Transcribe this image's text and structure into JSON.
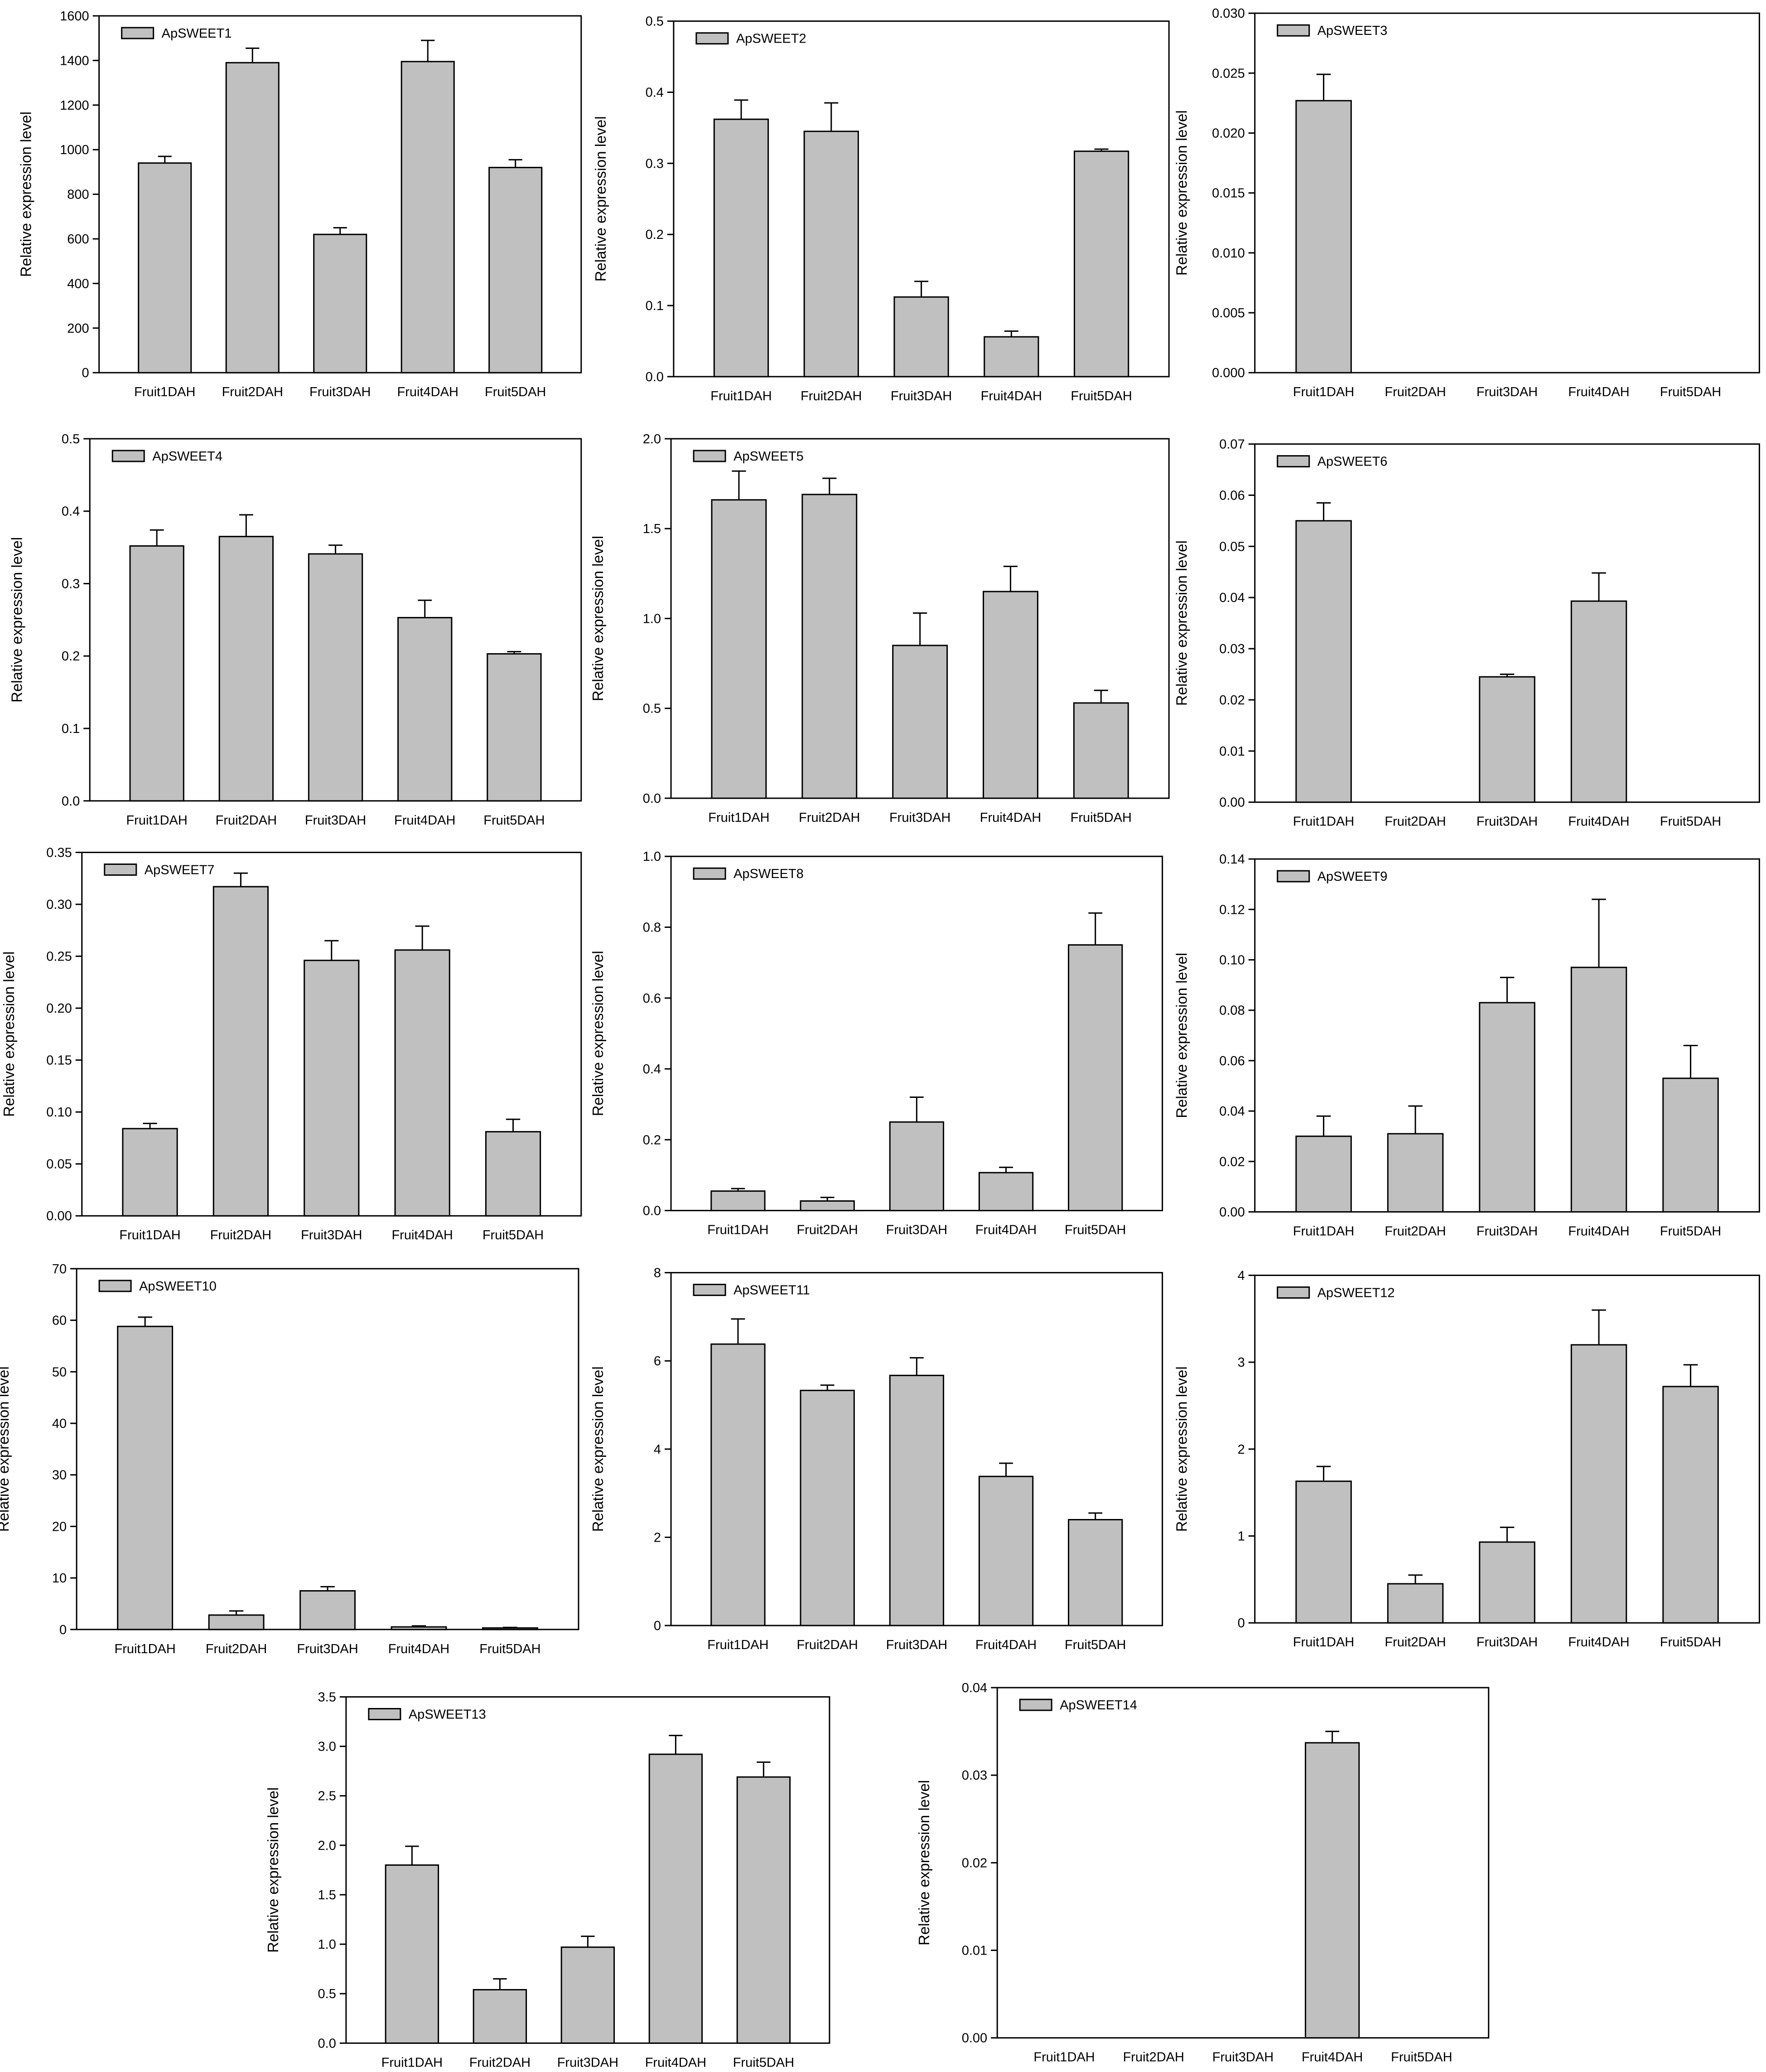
{
  "chart_data": [
    {
      "type": "bar",
      "legend": "ApSWEET1",
      "ylabel": "Relative expression level",
      "categories": [
        "Fruit1DAH",
        "Fruit2DAH",
        "Fruit3DAH",
        "Fruit4DAH",
        "Fruit5DAH"
      ],
      "values": [
        940,
        1390,
        620,
        1395,
        920
      ],
      "errors": [
        30,
        65,
        30,
        95,
        35
      ],
      "ylim": [
        0,
        1600
      ],
      "yticks": [
        "0",
        "200",
        "400",
        "600",
        "800",
        "1000",
        "1200",
        "1400",
        "1600"
      ],
      "legend_position": "top-left"
    },
    {
      "type": "bar",
      "legend": "ApSWEET2",
      "ylabel": "Relative expression level",
      "categories": [
        "Fruit1DAH",
        "Fruit2DAH",
        "Fruit3DAH",
        "Fruit4DAH",
        "Fruit5DAH"
      ],
      "values": [
        0.362,
        0.345,
        0.112,
        0.056,
        0.317
      ],
      "errors": [
        0.027,
        0.04,
        0.022,
        0.008,
        0.003
      ],
      "ylim": [
        0,
        0.5
      ],
      "yticks": [
        "0.0",
        "0.1",
        "0.2",
        "0.3",
        "0.4",
        "0.5"
      ],
      "legend_position": "top-left"
    },
    {
      "type": "bar",
      "legend": "ApSWEET3",
      "ylabel": "Relative expression level",
      "categories": [
        "Fruit1DAH",
        "Fruit2DAH",
        "Fruit3DAH",
        "Fruit4DAH",
        "Fruit5DAH"
      ],
      "values": [
        0.0227,
        0,
        0,
        0,
        0
      ],
      "errors": [
        0.0022,
        0,
        0,
        0,
        0
      ],
      "ylim": [
        0,
        0.03
      ],
      "yticks": [
        "0.000",
        "0.005",
        "0.010",
        "0.015",
        "0.020",
        "0.025",
        "0.030"
      ],
      "legend_position": "top-left"
    },
    {
      "type": "bar",
      "legend": "ApSWEET4",
      "ylabel": "Relative expression level",
      "categories": [
        "Fruit1DAH",
        "Fruit2DAH",
        "Fruit3DAH",
        "Fruit4DAH",
        "Fruit5DAH"
      ],
      "values": [
        0.352,
        0.365,
        0.341,
        0.253,
        0.203
      ],
      "errors": [
        0.022,
        0.03,
        0.012,
        0.024,
        0.003
      ],
      "ylim": [
        0,
        0.5
      ],
      "yticks": [
        "0.0",
        "0.1",
        "0.2",
        "0.3",
        "0.4",
        "0.5"
      ],
      "legend_position": "top-left"
    },
    {
      "type": "bar",
      "legend": "ApSWEET5",
      "ylabel": "Relative expression level",
      "categories": [
        "Fruit1DAH",
        "Fruit2DAH",
        "Fruit3DAH",
        "Fruit4DAH",
        "Fruit5DAH"
      ],
      "values": [
        1.66,
        1.69,
        0.85,
        1.15,
        0.53
      ],
      "errors": [
        0.16,
        0.09,
        0.18,
        0.14,
        0.07
      ],
      "ylim": [
        0,
        2.0
      ],
      "yticks": [
        "0.0",
        "0.5",
        "1.0",
        "1.5",
        "2.0"
      ],
      "legend_position": "top-left"
    },
    {
      "type": "bar",
      "legend": "ApSWEET6",
      "ylabel": "Relative expression level",
      "categories": [
        "Fruit1DAH",
        "Fruit2DAH",
        "Fruit3DAH",
        "Fruit4DAH",
        "Fruit5DAH"
      ],
      "values": [
        0.055,
        0,
        0.0245,
        0.0393,
        0
      ],
      "errors": [
        0.0035,
        0,
        0.0005,
        0.0055,
        0
      ],
      "ylim": [
        0,
        0.07
      ],
      "yticks": [
        "0.00",
        "0.01",
        "0.02",
        "0.03",
        "0.04",
        "0.05",
        "0.06",
        "0.07"
      ],
      "legend_position": "top-left"
    },
    {
      "type": "bar",
      "legend": "ApSWEET7",
      "ylabel": "Relative expression level",
      "categories": [
        "Fruit1DAH",
        "Fruit2DAH",
        "Fruit3DAH",
        "Fruit4DAH",
        "Fruit5DAH"
      ],
      "values": [
        0.084,
        0.317,
        0.246,
        0.256,
        0.081
      ],
      "errors": [
        0.005,
        0.013,
        0.019,
        0.023,
        0.012
      ],
      "ylim": [
        0,
        0.35
      ],
      "yticks": [
        "0.00",
        "0.05",
        "0.10",
        "0.15",
        "0.20",
        "0.25",
        "0.30",
        "0.35"
      ],
      "legend_position": "top-left"
    },
    {
      "type": "bar",
      "legend": "ApSWEET8",
      "ylabel": "Relative expression level",
      "categories": [
        "Fruit1DAH",
        "Fruit2DAH",
        "Fruit3DAH",
        "Fruit4DAH",
        "Fruit5DAH"
      ],
      "values": [
        0.055,
        0.027,
        0.25,
        0.107,
        0.75
      ],
      "errors": [
        0.007,
        0.01,
        0.07,
        0.015,
        0.09
      ],
      "ylim": [
        0,
        1.0
      ],
      "yticks": [
        "0.0",
        "0.2",
        "0.4",
        "0.6",
        "0.8",
        "1.0"
      ],
      "legend_position": "top-left"
    },
    {
      "type": "bar",
      "legend": "ApSWEET9",
      "ylabel": "Relative expression level",
      "categories": [
        "Fruit1DAH",
        "Fruit2DAH",
        "Fruit3DAH",
        "Fruit4DAH",
        "Fruit5DAH"
      ],
      "values": [
        0.03,
        0.031,
        0.083,
        0.097,
        0.053
      ],
      "errors": [
        0.008,
        0.011,
        0.01,
        0.027,
        0.013
      ],
      "ylim": [
        0,
        0.14
      ],
      "yticks": [
        "0.00",
        "0.02",
        "0.04",
        "0.06",
        "0.08",
        "0.10",
        "0.12",
        "0.14"
      ],
      "legend_position": "top-left"
    },
    {
      "type": "bar",
      "legend": "ApSWEET10",
      "ylabel": "Relative expression level",
      "categories": [
        "Fruit1DAH",
        "Fruit2DAH",
        "Fruit3DAH",
        "Fruit4DAH",
        "Fruit5DAH"
      ],
      "values": [
        58.8,
        2.8,
        7.5,
        0.5,
        0.3
      ],
      "errors": [
        1.8,
        0.8,
        0.8,
        0.2,
        0.1
      ],
      "ylim": [
        0,
        70
      ],
      "yticks": [
        "0",
        "10",
        "20",
        "30",
        "40",
        "50",
        "60",
        "70"
      ],
      "legend_position": "top-left"
    },
    {
      "type": "bar",
      "legend": "ApSWEET11",
      "ylabel": "Relative expression level",
      "categories": [
        "Fruit1DAH",
        "Fruit2DAH",
        "Fruit3DAH",
        "Fruit4DAH",
        "Fruit5DAH"
      ],
      "values": [
        6.38,
        5.33,
        5.67,
        3.38,
        2.4
      ],
      "errors": [
        0.57,
        0.12,
        0.4,
        0.3,
        0.15
      ],
      "ylim": [
        0,
        8
      ],
      "yticks": [
        "0",
        "2",
        "4",
        "6",
        "8"
      ],
      "legend_position": "top-left"
    },
    {
      "type": "bar",
      "legend": "ApSWEET12",
      "ylabel": "Relative expression level",
      "categories": [
        "Fruit1DAH",
        "Fruit2DAH",
        "Fruit3DAH",
        "Fruit4DAH",
        "Fruit5DAH"
      ],
      "values": [
        1.63,
        0.45,
        0.93,
        3.2,
        2.72
      ],
      "errors": [
        0.17,
        0.1,
        0.17,
        0.4,
        0.25
      ],
      "ylim": [
        0,
        4
      ],
      "yticks": [
        "0",
        "1",
        "2",
        "3",
        "4"
      ],
      "legend_position": "top-left"
    },
    {
      "type": "bar",
      "legend": "ApSWEET13",
      "ylabel": "Relative expression level",
      "categories": [
        "Fruit1DAH",
        "Fruit2DAH",
        "Fruit3DAH",
        "Fruit4DAH",
        "Fruit5DAH"
      ],
      "values": [
        1.8,
        0.54,
        0.97,
        2.92,
        2.69
      ],
      "errors": [
        0.19,
        0.11,
        0.11,
        0.19,
        0.15
      ],
      "ylim": [
        0,
        3.5
      ],
      "yticks": [
        "0.0",
        "0.5",
        "1.0",
        "1.5",
        "2.0",
        "2.5",
        "3.0",
        "3.5"
      ],
      "legend_position": "top-left"
    },
    {
      "type": "bar",
      "legend": "ApSWEET14",
      "ylabel": "Relative expression level",
      "categories": [
        "Fruit1DAH",
        "Fruit2DAH",
        "Fruit3DAH",
        "Fruit4DAH",
        "Fruit5DAH"
      ],
      "values": [
        0,
        0,
        0,
        0.0337,
        0
      ],
      "errors": [
        0,
        0,
        0,
        0.0013,
        0
      ],
      "ylim": [
        0,
        0.04
      ],
      "yticks": [
        "0.00",
        "0.01",
        "0.02",
        "0.03",
        "0.04"
      ],
      "legend_position": "top-left"
    }
  ],
  "colors": {
    "bar": "#c0c0c0",
    "stroke": "#000000"
  }
}
